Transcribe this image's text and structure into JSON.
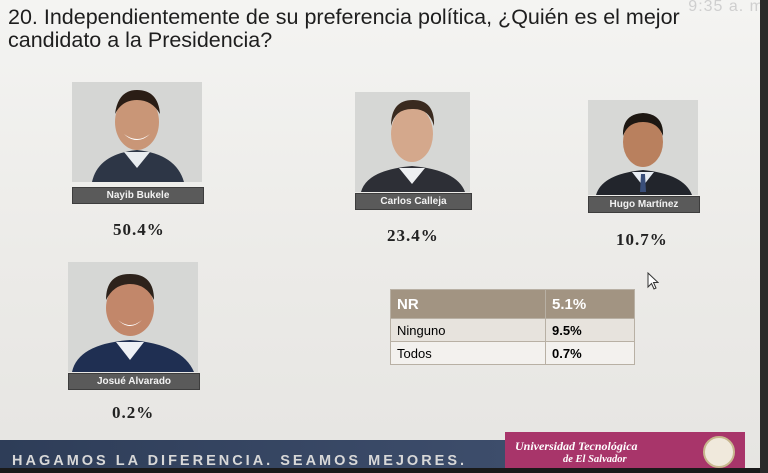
{
  "clock": "9:35 a. m",
  "question": "20. Independientemente de su preferencia política, ¿Quién es el mejor candidato a la Presidencia?",
  "chart_data": {
    "type": "bar",
    "categories": [
      "Nayib Bukele",
      "Carlos Calleja",
      "Hugo Martínez",
      "Josué Alvarado"
    ],
    "values": [
      50.4,
      23.4,
      10.7,
      0.2
    ],
    "value_labels": [
      "50.4%",
      "23.4%",
      "10.7%",
      "0.2%"
    ],
    "title": "20. Independientemente de su preferencia política, ¿Quién es el mejor candidato a la Presidencia?",
    "table": {
      "header": {
        "label": "NR",
        "value": "5.1%"
      },
      "rows": [
        {
          "label": "Ninguno",
          "value": "9.5%"
        },
        {
          "label": "Todos",
          "value": "0.7%"
        }
      ]
    }
  },
  "footer": {
    "slogan": "HAGAMOS LA DIFERENCIA. SEAMOS MEJORES.",
    "university_line1": "Universidad Tecnológica",
    "university_line2": "de El Salvador"
  },
  "colors": {
    "table_header": "#a29482",
    "slogan_bar": "#2e3d58",
    "university_bar": "#a8356a",
    "name_tag": "#5a5a5a"
  }
}
